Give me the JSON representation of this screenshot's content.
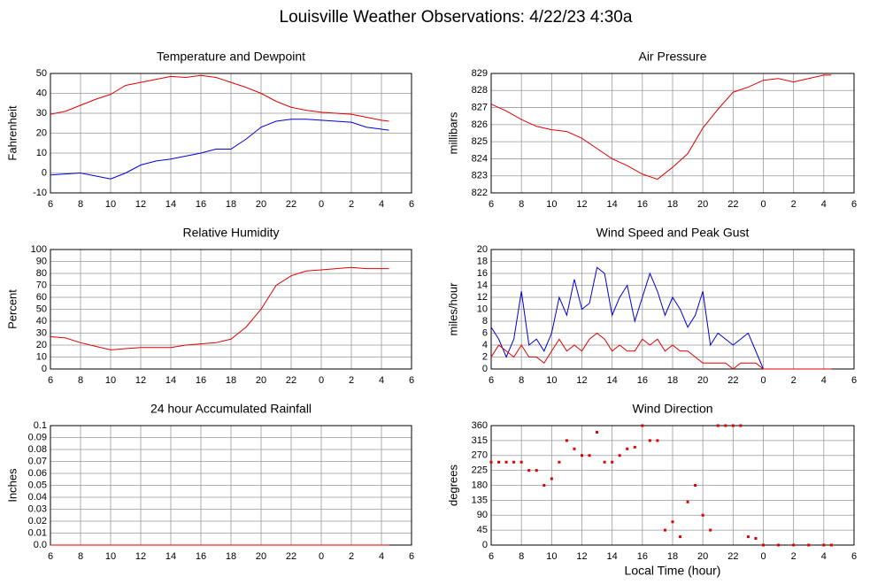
{
  "title": "Louisville Weather Observations: 4/22/23 4:30a",
  "chart_data": [
    {
      "type": "line",
      "title": "Temperature and Dewpoint",
      "ylabel": "Fahrenheit",
      "x": [
        6,
        7,
        8,
        9,
        10,
        11,
        12,
        13,
        14,
        15,
        16,
        17,
        18,
        19,
        20,
        21,
        22,
        23,
        24,
        25,
        26,
        27,
        28,
        28.5
      ],
      "series": [
        {
          "name": "Temperature",
          "color": "#e00000",
          "values": [
            29.5,
            31,
            34,
            37,
            39.5,
            44,
            45.5,
            47,
            48.5,
            48,
            49,
            48,
            45.5,
            43,
            40,
            36,
            33,
            31.5,
            30.5,
            30,
            29.5,
            28,
            26.5,
            26
          ]
        },
        {
          "name": "Dewpoint",
          "color": "#0000e0",
          "values": [
            -1,
            -0.5,
            0,
            -1.5,
            -3,
            0,
            4,
            6,
            7,
            8.5,
            10,
            12,
            12,
            17,
            23,
            26,
            27,
            27,
            26.5,
            26,
            25.5,
            23,
            22,
            21.5
          ]
        }
      ],
      "xlim": [
        6,
        30
      ],
      "xticks": [
        6,
        8,
        10,
        12,
        14,
        16,
        18,
        20,
        22,
        {
          "value": 24,
          "label": "0"
        },
        {
          "value": 26,
          "label": "2"
        },
        {
          "value": 28,
          "label": "4"
        },
        {
          "value": 30,
          "label": "6"
        }
      ],
      "ylim": [
        -10,
        50
      ],
      "yticks": [
        -10,
        0,
        10,
        20,
        30,
        40,
        50
      ],
      "grid": true
    },
    {
      "type": "line",
      "title": "Air Pressure",
      "ylabel": "millibars",
      "x": [
        6,
        7,
        8,
        9,
        10,
        11,
        12,
        13,
        14,
        15,
        16,
        17,
        18,
        19,
        20,
        21,
        22,
        23,
        24,
        25,
        26,
        27,
        28,
        28.5
      ],
      "series": [
        {
          "name": "Pressure",
          "color": "#e00000",
          "values": [
            827.2,
            826.8,
            826.3,
            825.9,
            825.7,
            825.6,
            825.2,
            824.6,
            824,
            823.6,
            823.1,
            822.8,
            823.5,
            824.3,
            825.8,
            826.9,
            827.9,
            828.2,
            828.6,
            828.7,
            828.5,
            828.7,
            828.9,
            828.9
          ]
        }
      ],
      "xlim": [
        6,
        30
      ],
      "xticks": [
        6,
        8,
        10,
        12,
        14,
        16,
        18,
        20,
        22,
        {
          "value": 24,
          "label": "0"
        },
        {
          "value": 26,
          "label": "2"
        },
        {
          "value": 28,
          "label": "4"
        },
        {
          "value": 30,
          "label": "6"
        }
      ],
      "ylim": [
        822,
        829
      ],
      "yticks": [
        822,
        823,
        824,
        825,
        826,
        827,
        828,
        829
      ],
      "grid": true
    },
    {
      "type": "line",
      "title": "Relative Humidity",
      "ylabel": "Percent",
      "x": [
        6,
        7,
        8,
        9,
        10,
        11,
        12,
        13,
        14,
        15,
        16,
        17,
        18,
        19,
        20,
        21,
        22,
        23,
        24,
        25,
        26,
        27,
        28,
        28.5
      ],
      "series": [
        {
          "name": "Relative Humidity",
          "color": "#e00000",
          "values": [
            27,
            26,
            22,
            19,
            16,
            17,
            18,
            18,
            18,
            20,
            21,
            22,
            25,
            35,
            50,
            70,
            78,
            82,
            83,
            84,
            85,
            84,
            84,
            84
          ]
        }
      ],
      "xlim": [
        6,
        30
      ],
      "xticks": [
        6,
        8,
        10,
        12,
        14,
        16,
        18,
        20,
        22,
        {
          "value": 24,
          "label": "0"
        },
        {
          "value": 26,
          "label": "2"
        },
        {
          "value": 28,
          "label": "4"
        },
        {
          "value": 30,
          "label": "6"
        }
      ],
      "ylim": [
        0,
        100
      ],
      "yticks": [
        0,
        10,
        20,
        30,
        40,
        50,
        60,
        70,
        80,
        90,
        100
      ],
      "grid": true
    },
    {
      "type": "line",
      "title": "Wind Speed and Peak Gust",
      "ylabel": "miles/hour",
      "x": [
        6,
        6.5,
        7,
        7.5,
        8,
        8.5,
        9,
        9.5,
        10,
        10.5,
        11,
        11.5,
        12,
        12.5,
        13,
        13.5,
        14,
        14.5,
        15,
        15.5,
        16,
        16.5,
        17,
        17.5,
        18,
        18.5,
        19,
        19.5,
        20,
        20.5,
        21,
        21.5,
        22,
        22.5,
        23,
        23.5,
        24,
        24.5,
        25,
        25.5,
        26,
        26.5,
        27,
        27.5,
        28,
        28.5
      ],
      "series": [
        {
          "name": "Peak Gust",
          "color": "#0000e0",
          "values": [
            7,
            5,
            2,
            5,
            13,
            4,
            5,
            3,
            6,
            12,
            9,
            15,
            10,
            11,
            17,
            16,
            9,
            12,
            14,
            8,
            12,
            16,
            13,
            9,
            12,
            10,
            7,
            9,
            13,
            4,
            6,
            5,
            4,
            5,
            6,
            3,
            0,
            0,
            0,
            0,
            0,
            0,
            0,
            0,
            0,
            0
          ]
        },
        {
          "name": "Wind Speed",
          "color": "#e00000",
          "values": [
            2,
            4,
            3,
            2,
            4,
            2,
            2,
            1,
            3,
            5,
            3,
            4,
            3,
            5,
            6,
            5,
            3,
            4,
            3,
            3,
            5,
            4,
            5,
            3,
            4,
            3,
            3,
            2,
            1,
            1,
            1,
            1,
            0,
            1,
            1,
            1,
            0,
            0,
            0,
            0,
            0,
            0,
            0,
            0,
            0,
            0
          ]
        }
      ],
      "xlim": [
        6,
        30
      ],
      "xticks": [
        6,
        8,
        10,
        12,
        14,
        16,
        18,
        20,
        22,
        {
          "value": 24,
          "label": "0"
        },
        {
          "value": 26,
          "label": "2"
        },
        {
          "value": 28,
          "label": "4"
        },
        {
          "value": 30,
          "label": "6"
        }
      ],
      "ylim": [
        0,
        20
      ],
      "yticks": [
        0,
        2,
        4,
        6,
        8,
        10,
        12,
        14,
        16,
        18,
        20
      ],
      "grid": true
    },
    {
      "type": "line",
      "title": "24 hour Accumulated Rainfall",
      "ylabel": "Inches",
      "x": [
        6,
        7,
        8,
        9,
        10,
        11,
        12,
        13,
        14,
        15,
        16,
        17,
        18,
        19,
        20,
        21,
        22,
        23,
        24,
        25,
        26,
        27,
        28,
        28.5
      ],
      "series": [
        {
          "name": "Rainfall",
          "color": "#e00000",
          "values": [
            0,
            0,
            0,
            0,
            0,
            0,
            0,
            0,
            0,
            0,
            0,
            0,
            0,
            0,
            0,
            0,
            0,
            0,
            0,
            0,
            0,
            0,
            0,
            0
          ]
        }
      ],
      "xlim": [
        6,
        30
      ],
      "xticks": [
        6,
        8,
        10,
        12,
        14,
        16,
        18,
        20,
        22,
        {
          "value": 24,
          "label": "0"
        },
        {
          "value": 26,
          "label": "2"
        },
        {
          "value": 28,
          "label": "4"
        },
        {
          "value": 30,
          "label": "6"
        }
      ],
      "ylim": [
        0,
        0.1
      ],
      "yticks": [
        {
          "value": 0,
          "label": "0.0"
        },
        0.01,
        0.02,
        0.03,
        0.04,
        0.05,
        0.06,
        0.07,
        0.08,
        0.09,
        0.1
      ],
      "grid": true
    },
    {
      "type": "scatter",
      "title": "Wind Direction",
      "ylabel": "degrees",
      "xlabel": "Local Time (hour)",
      "x": [
        6,
        6.5,
        7,
        7.5,
        8,
        8.5,
        9,
        9.5,
        10,
        10.5,
        11,
        11.5,
        12,
        12.5,
        13,
        13.5,
        14,
        14.5,
        15,
        15.5,
        16,
        16.5,
        17,
        17.5,
        18,
        18.5,
        19,
        19.5,
        20,
        20.5,
        21,
        21.5,
        22,
        22.5,
        23,
        23.5,
        24,
        25,
        26,
        27,
        28,
        28.5
      ],
      "series": [
        {
          "name": "Wind Direction",
          "color": "#e00000",
          "values": [
            250,
            250,
            250,
            250,
            250,
            225,
            225,
            180,
            200,
            250,
            315,
            290,
            270,
            270,
            340,
            250,
            250,
            270,
            290,
            295,
            360,
            315,
            315,
            45,
            70,
            25,
            130,
            180,
            90,
            45,
            360,
            360,
            360,
            360,
            25,
            20,
            0,
            0,
            0,
            0,
            0,
            0
          ]
        }
      ],
      "xlim": [
        6,
        30
      ],
      "xticks": [
        6,
        8,
        10,
        12,
        14,
        16,
        18,
        20,
        22,
        {
          "value": 24,
          "label": "0"
        },
        {
          "value": 26,
          "label": "2"
        },
        {
          "value": 28,
          "label": "4"
        },
        {
          "value": 30,
          "label": "6"
        }
      ],
      "ylim": [
        0,
        360
      ],
      "yticks": [
        0,
        45,
        90,
        135,
        180,
        225,
        270,
        315,
        360
      ],
      "grid": true
    }
  ]
}
